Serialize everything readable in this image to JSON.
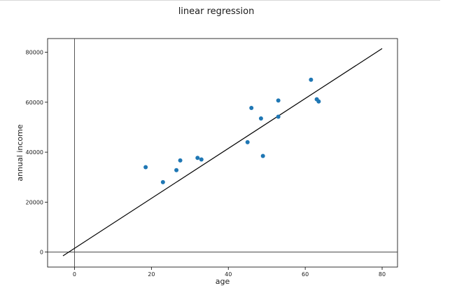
{
  "chart_data": {
    "type": "scatter",
    "title": "linear regression",
    "xlabel": "age",
    "ylabel": "annual income",
    "xlim": [
      -7,
      84
    ],
    "ylim": [
      -6000,
      85500
    ],
    "xticks": [
      0,
      20,
      40,
      60,
      80
    ],
    "yticks": [
      0,
      20000,
      40000,
      60000,
      80000
    ],
    "grid": false,
    "point_color": "#1f77b4",
    "line_color": "#000000",
    "points": [
      {
        "x": 18.5,
        "y": 34000
      },
      {
        "x": 23.0,
        "y": 28000
      },
      {
        "x": 26.5,
        "y": 32800
      },
      {
        "x": 27.5,
        "y": 36700
      },
      {
        "x": 32.0,
        "y": 37700
      },
      {
        "x": 33.0,
        "y": 37100
      },
      {
        "x": 45.0,
        "y": 44000
      },
      {
        "x": 46.0,
        "y": 57700
      },
      {
        "x": 48.5,
        "y": 53500
      },
      {
        "x": 49.0,
        "y": 38500
      },
      {
        "x": 53.0,
        "y": 60700
      },
      {
        "x": 53.0,
        "y": 54200
      },
      {
        "x": 61.5,
        "y": 69000
      },
      {
        "x": 63.0,
        "y": 61200
      },
      {
        "x": 63.5,
        "y": 60300
      }
    ],
    "regression_line": {
      "x": [
        -3,
        80
      ],
      "y": [
        -1500,
        81500
      ]
    },
    "reference_lines": {
      "vertical_x": 0,
      "horizontal_y": 0
    }
  }
}
